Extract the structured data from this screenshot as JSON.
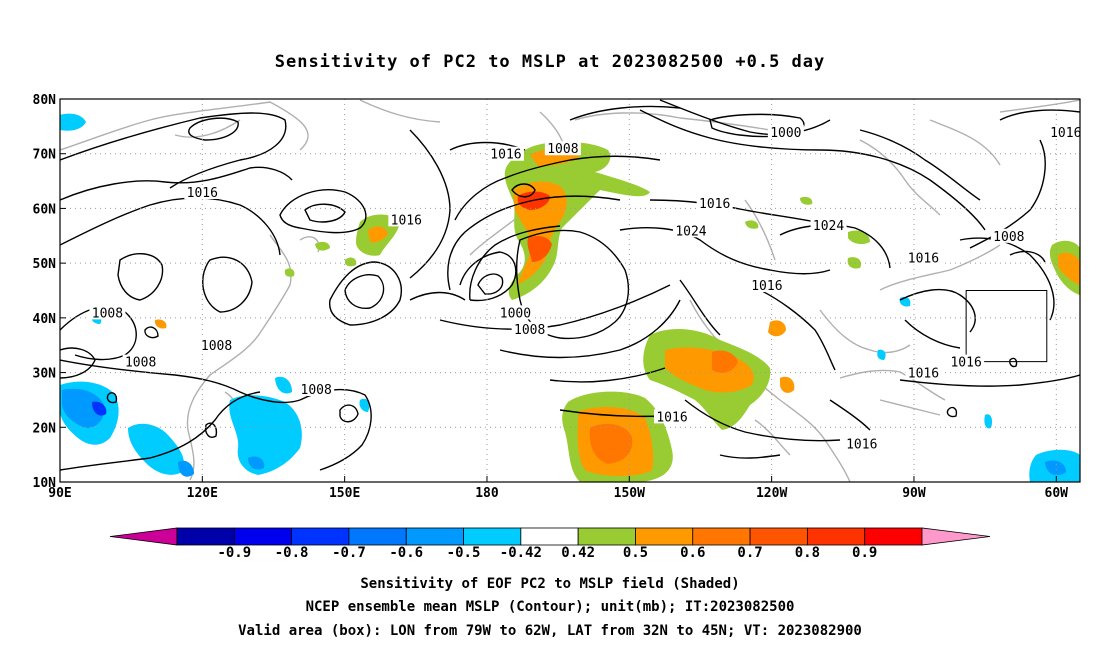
{
  "title": "Sensitivity of PC2 to MSLP at 2023082500 +0.5 day",
  "map": {
    "lon_range": [
      90,
      305
    ],
    "lat_range": [
      10,
      80
    ],
    "lat_ticks": [
      {
        "value": 80,
        "label": "80N"
      },
      {
        "value": 70,
        "label": "70N"
      },
      {
        "value": 60,
        "label": "60N"
      },
      {
        "value": 50,
        "label": "50N"
      },
      {
        "value": 40,
        "label": "40N"
      },
      {
        "value": 30,
        "label": "30N"
      },
      {
        "value": 20,
        "label": "20N"
      },
      {
        "value": 10,
        "label": "10N"
      }
    ],
    "lon_ticks": [
      {
        "value": 90,
        "label": "90E"
      },
      {
        "value": 120,
        "label": "120E"
      },
      {
        "value": 150,
        "label": "150E"
      },
      {
        "value": 180,
        "label": "180"
      },
      {
        "value": 210,
        "label": "150W"
      },
      {
        "value": 240,
        "label": "120W"
      },
      {
        "value": 270,
        "label": "90W"
      },
      {
        "value": 300,
        "label": "60W"
      }
    ],
    "grid": "dotted",
    "valid_box": {
      "lon": [
        281,
        298
      ],
      "lat": [
        32,
        45
      ]
    },
    "contour_labels": [
      {
        "text": "1016",
        "lon": 120,
        "lat": 63
      },
      {
        "text": "1008",
        "lon": 100,
        "lat": 41
      },
      {
        "text": "1008",
        "lon": 123,
        "lat": 35
      },
      {
        "text": "1008",
        "lon": 107,
        "lat": 32
      },
      {
        "text": "1008",
        "lon": 144,
        "lat": 27
      },
      {
        "text": "1016",
        "lon": 163,
        "lat": 58
      },
      {
        "text": "1016",
        "lon": 184,
        "lat": 70
      },
      {
        "text": "1008",
        "lon": 196,
        "lat": 71
      },
      {
        "text": "1000",
        "lon": 186,
        "lat": 41
      },
      {
        "text": "1008",
        "lon": 189,
        "lat": 38
      },
      {
        "text": "1016",
        "lon": 228,
        "lat": 61
      },
      {
        "text": "1024",
        "lon": 223,
        "lat": 56
      },
      {
        "text": "1000",
        "lon": 243,
        "lat": 74
      },
      {
        "text": "1016",
        "lon": 302,
        "lat": 74
      },
      {
        "text": "1024",
        "lon": 252,
        "lat": 57
      },
      {
        "text": "1016",
        "lon": 272,
        "lat": 51
      },
      {
        "text": "1016",
        "lon": 239,
        "lat": 46
      },
      {
        "text": "1008",
        "lon": 290,
        "lat": 55
      },
      {
        "text": "1016",
        "lon": 281,
        "lat": 32
      },
      {
        "text": "1016",
        "lon": 272,
        "lat": 30
      },
      {
        "text": "1016",
        "lon": 219,
        "lat": 22
      },
      {
        "text": "1016",
        "lon": 259,
        "lat": 17
      }
    ],
    "shading_colors": {
      "green": "#99cc33",
      "orange": "#ff9900",
      "dark_orange": "#ff6600",
      "red_orange": "#ff3300",
      "light_blue": "#00ccff",
      "blue": "#0099ff",
      "dark_blue": "#0033ff"
    }
  },
  "colorbar": {
    "labels": [
      "-0.9",
      "-0.8",
      "-0.7",
      "-0.6",
      "-0.5",
      "-0.42",
      "0.42",
      "0.5",
      "0.6",
      "0.7",
      "0.8",
      "0.9"
    ],
    "under_color": "#cc0099",
    "over_color": "#ff99cc",
    "colors": [
      "#0000aa",
      "#0000ee",
      "#0033ff",
      "#0077ff",
      "#0099ff",
      "#00ccff",
      "#ffffff",
      "#99cc33",
      "#ff9900",
      "#ff7700",
      "#ff5500",
      "#ff3300",
      "#ff0000"
    ]
  },
  "captions": [
    "Sensitivity of EOF PC2 to MSLP field (Shaded)",
    "NCEP ensemble mean MSLP (Contour); unit(mb); IT:2023082500",
    "Valid area (box): LON from 79W to 62W, LAT from 32N to 45N; VT: 2023082900"
  ]
}
